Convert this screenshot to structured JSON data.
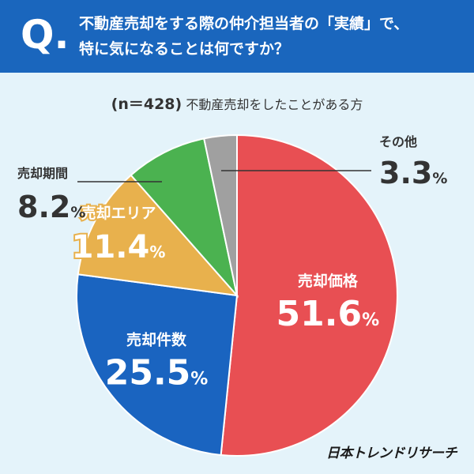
{
  "header": {
    "q_mark": "Q.",
    "line1": "不動産売却をする際の仲介担当者の「実績」で、",
    "line2": "特に気になることは何ですか？"
  },
  "note": {
    "sample": "(n＝428)",
    "desc": "不動産売却をしたことがある方"
  },
  "logo": "日本トレンドリサーチ",
  "chart_data": {
    "type": "pie",
    "unit": "%",
    "slices": [
      {
        "label": "売却価格",
        "value": 51.6,
        "color": "#e84f53"
      },
      {
        "label": "売却件数",
        "value": 25.5,
        "color": "#1a64c0"
      },
      {
        "label": "売却エリア",
        "value": 11.4,
        "color": "#e8b14d"
      },
      {
        "label": "売却期間",
        "value": 8.2,
        "color": "#4bb250"
      },
      {
        "label": "その他",
        "value": 3.3,
        "color": "#a0a0a0"
      }
    ]
  }
}
